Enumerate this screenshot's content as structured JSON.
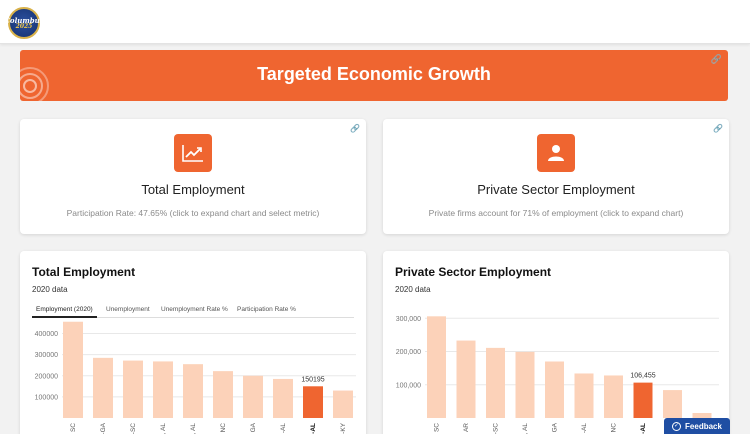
{
  "header": {
    "logo_text_1": "Columbus",
    "logo_text_2": "2025"
  },
  "banner": {
    "title": "Targeted Economic Growth",
    "link_icon": "link-icon"
  },
  "metrics": [
    {
      "icon": "trend-chart-icon",
      "title": "Total Employment",
      "subtitle": "Participation Rate: 47.65% (click to expand chart and select metric)"
    },
    {
      "icon": "person-icon",
      "title": "Private Sector Employment",
      "subtitle": "Private firms account for 71% of employment (click to expand chart)"
    }
  ],
  "charts": {
    "total": {
      "title": "Total Employment",
      "subtitle": "2020 data",
      "tabs": [
        "Employment (2020)",
        "Unemployment",
        "Unemployment Rate %",
        "Participation Rate %"
      ],
      "active_tab": 0
    },
    "private": {
      "title": "Private Sector Employment",
      "subtitle": "2020 data"
    }
  },
  "colors": {
    "accent": "#ef6530",
    "bar_light": "#fcd2b9",
    "highlight": "#ef6530",
    "feedback": "#1f4ea3"
  },
  "feedback": {
    "label": "Feedback",
    "icon": "check-icon"
  },
  "chart_data": [
    {
      "type": "bar",
      "title": "Total Employment",
      "subtitle": "2020 data",
      "ylim": [
        0,
        450000
      ],
      "yticks": [
        100000,
        200000,
        300000,
        400000
      ],
      "ytick_labels": [
        "100000",
        "200000",
        "300000",
        "400000"
      ],
      "categories": [
        ", SC",
        "-GA",
        "ounty, -SC",
        "ndale-, AL",
        ", AL",
        ", NC",
        ", GA",
        "-AL",
        "A-AL",
        "N-KY"
      ],
      "values": [
        456000,
        285000,
        272000,
        268000,
        255000,
        222000,
        200000,
        185000,
        150195,
        130000
      ],
      "highlight_index": 8,
      "highlight_label": "150195"
    },
    {
      "type": "bar",
      "title": "Private Sector Employment",
      "subtitle": "2020 data",
      "ylim": [
        0,
        340000
      ],
      "yticks": [
        100000,
        200000,
        300000
      ],
      "ytick_labels": [
        "100,000",
        "200,000",
        "300,000"
      ],
      "categories": [
        ", SC",
        "dale-, AR",
        "ounty, -SC",
        ", AL",
        ", GA",
        "-AL",
        ", NC",
        "A-AL",
        "",
        ""
      ],
      "values": [
        306000,
        233000,
        211000,
        199000,
        170000,
        134000,
        128000,
        106455,
        84000,
        15000
      ],
      "highlight_index": 7,
      "highlight_label": "106,455"
    }
  ]
}
